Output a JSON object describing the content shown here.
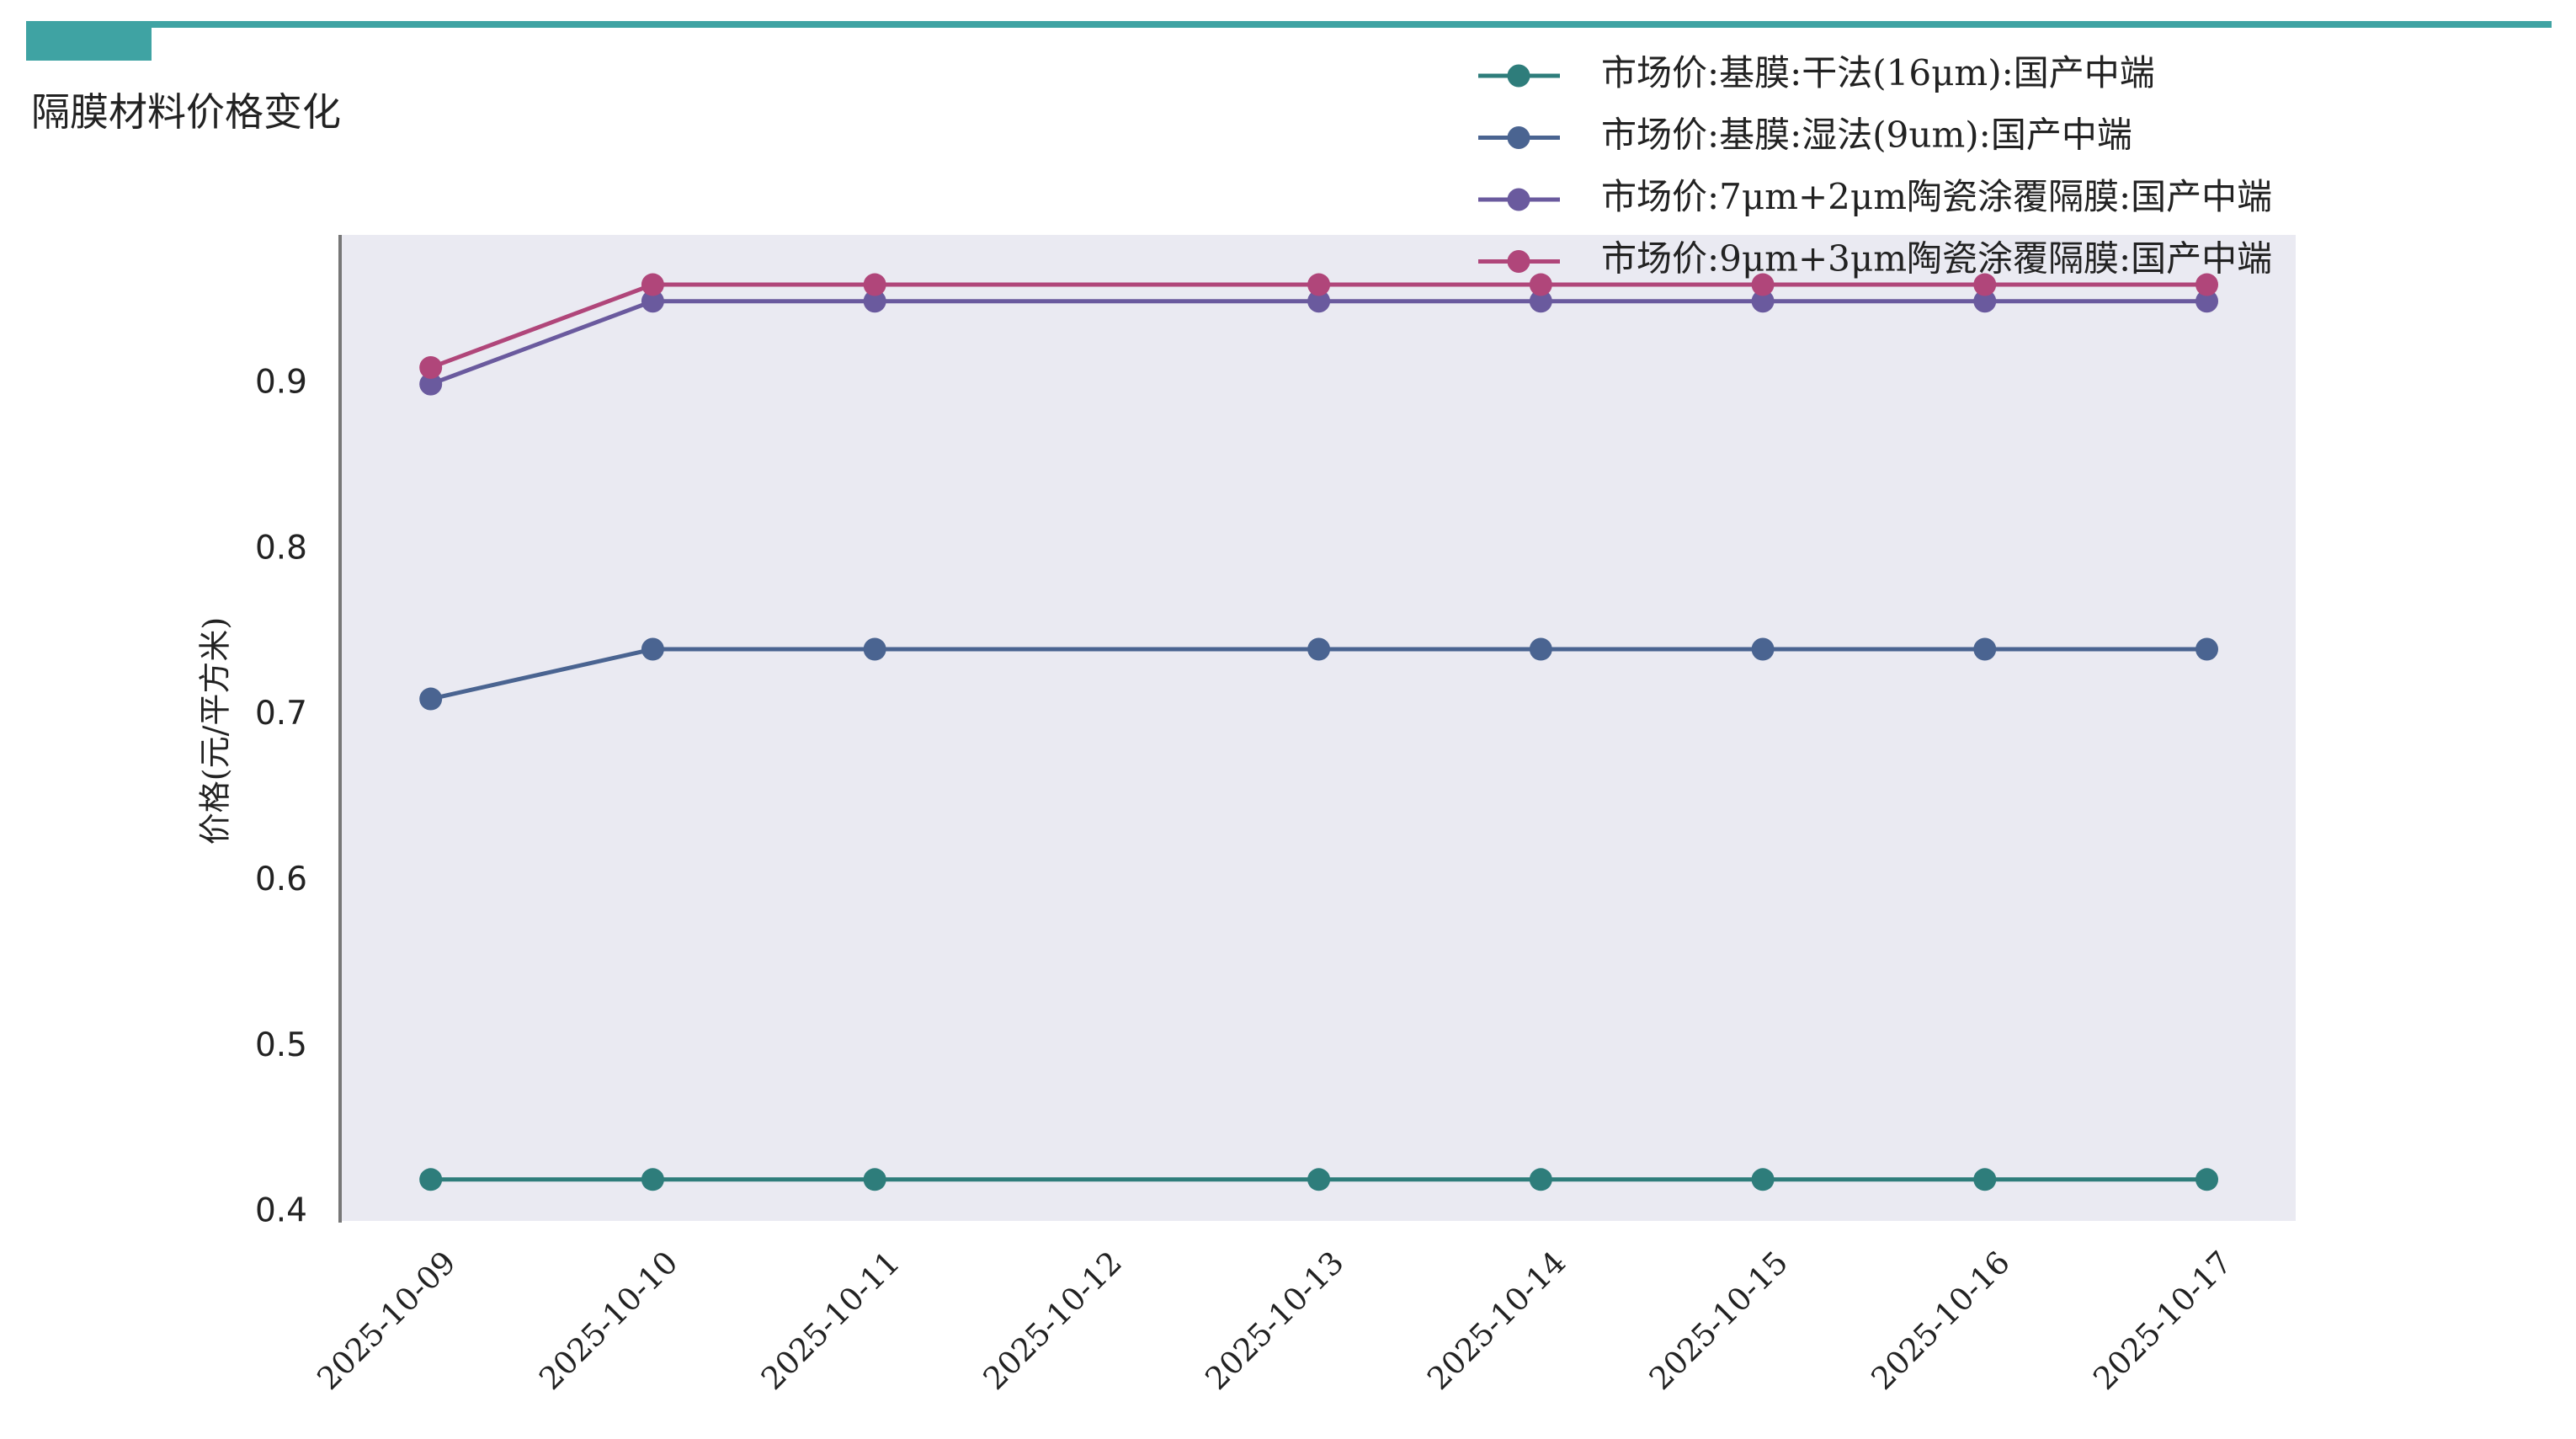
{
  "chart_data": {
    "type": "line",
    "title": "隔膜材料价格变化",
    "ylabel": "价格(元/平方米)",
    "x": [
      "2025-10-09",
      "2025-10-10",
      "2025-10-11",
      "2025-10-13",
      "2025-10-14",
      "2025-10-15",
      "2025-10-16",
      "2025-10-17"
    ],
    "xlim": [
      "2025-10-08T14:12Z",
      "2025-10-17T09:36Z"
    ],
    "xticks": [
      "2025-10-09",
      "2025-10-10",
      "2025-10-11",
      "2025-10-12",
      "2025-10-13",
      "2025-10-14",
      "2025-10-15",
      "2025-10-16",
      "2025-10-17"
    ],
    "ylim": [
      0.395,
      0.99
    ],
    "yticks": [
      0.4,
      0.5,
      0.6,
      0.7,
      0.8,
      0.9
    ],
    "legend": "upper right",
    "series": [
      {
        "name": "市场价:基膜:干法(16μm):国产中端",
        "color": "#2e7d7b",
        "values": [
          0.42,
          0.42,
          0.42,
          0.42,
          0.42,
          0.42,
          0.42,
          0.42
        ]
      },
      {
        "name": "市场价:基膜:湿法(9um):国产中端",
        "color": "#4a6491",
        "values": [
          0.71,
          0.74,
          0.74,
          0.74,
          0.74,
          0.74,
          0.74,
          0.74
        ]
      },
      {
        "name": "市场价:7μm+2μm陶瓷涂覆隔膜:国产中端",
        "color": "#6a5a9e",
        "values": [
          0.9,
          0.95,
          0.95,
          0.95,
          0.95,
          0.95,
          0.95,
          0.95
        ]
      },
      {
        "name": "市场价:9μm+3μm陶瓷涂覆隔膜:国产中端",
        "color": "#b0467a",
        "values": [
          0.91,
          0.96,
          0.96,
          0.96,
          0.96,
          0.96,
          0.96,
          0.96
        ]
      }
    ]
  }
}
